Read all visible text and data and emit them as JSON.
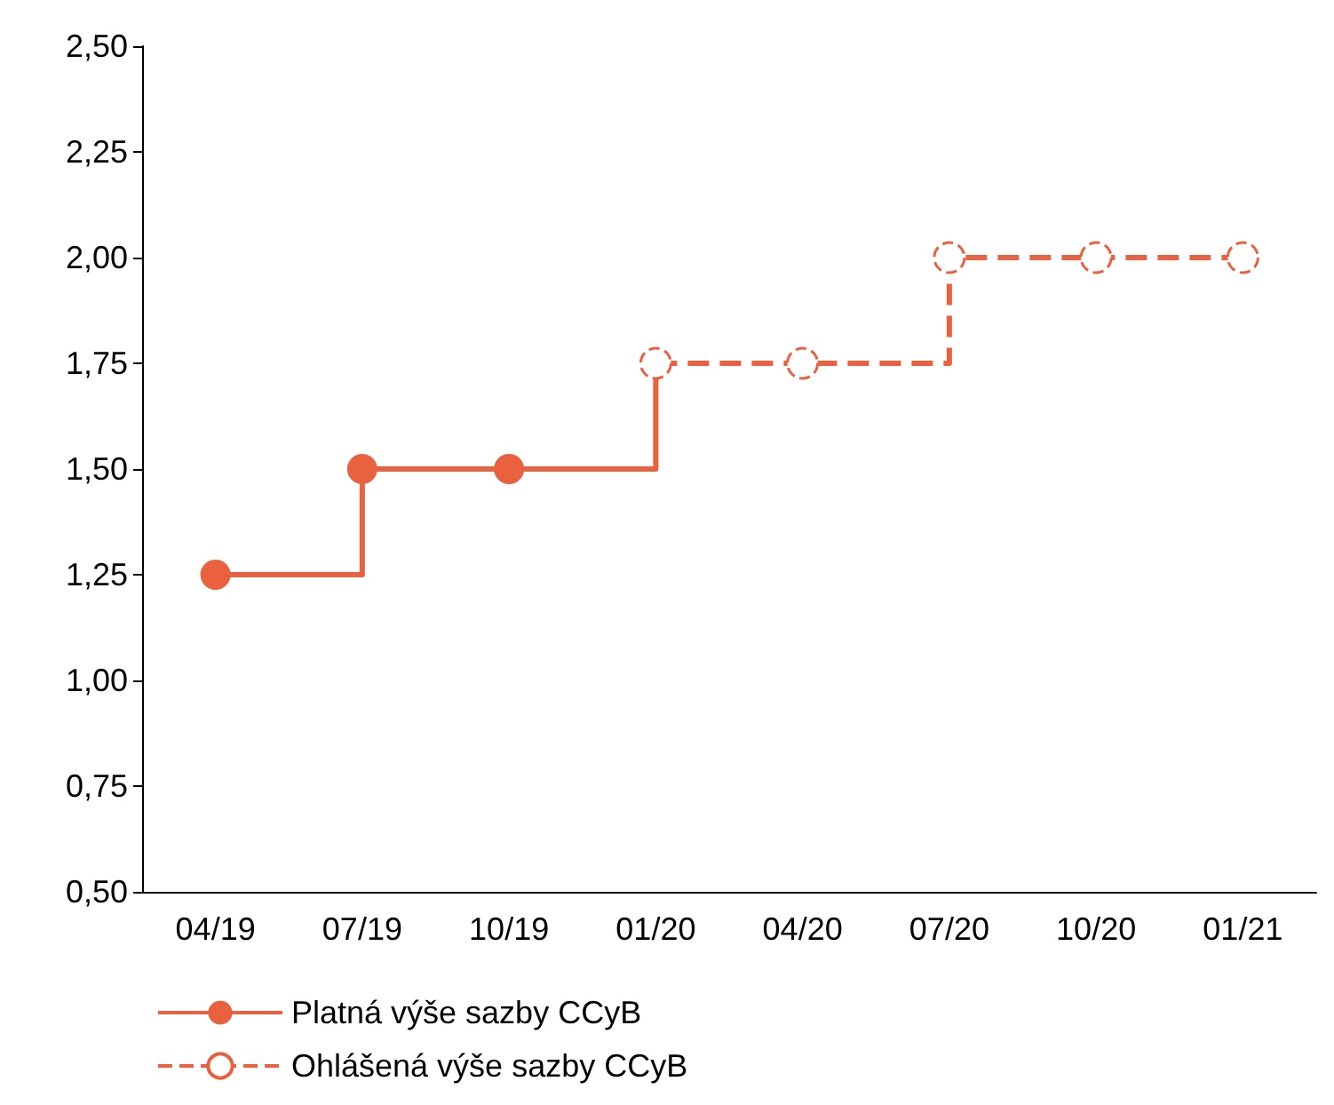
{
  "chart_data": {
    "type": "step",
    "categories": [
      "04/19",
      "07/19",
      "10/19",
      "01/20",
      "04/20",
      "07/20",
      "10/20",
      "01/21"
    ],
    "series": [
      {
        "name": "Platná výše sazby CCyB",
        "color": "#ea6140",
        "line_style": "solid",
        "marker": "circle",
        "values": [
          1.25,
          1.5,
          1.5,
          1.75,
          null,
          null,
          null,
          null
        ]
      },
      {
        "name": "Ohlášená výše sazby CCyB",
        "color": "#ea6140",
        "line_style": "dashed",
        "marker": "circle",
        "values": [
          null,
          null,
          null,
          1.75,
          1.75,
          2.0,
          2.0,
          2.0
        ]
      }
    ],
    "ylim": [
      0.5,
      2.5
    ],
    "yticks": [
      {
        "value": 0.5,
        "label": "0,50"
      },
      {
        "value": 0.75,
        "label": "0,75"
      },
      {
        "value": 1.0,
        "label": "1,00"
      },
      {
        "value": 1.25,
        "label": "1,25"
      },
      {
        "value": 1.5,
        "label": "1,50"
      },
      {
        "value": 1.75,
        "label": "1,75"
      },
      {
        "value": 2.0,
        "label": "2,00"
      },
      {
        "value": 2.25,
        "label": "2,25"
      },
      {
        "value": 2.5,
        "label": "2,50"
      }
    ],
    "grid": false,
    "legend": "bottom left"
  }
}
